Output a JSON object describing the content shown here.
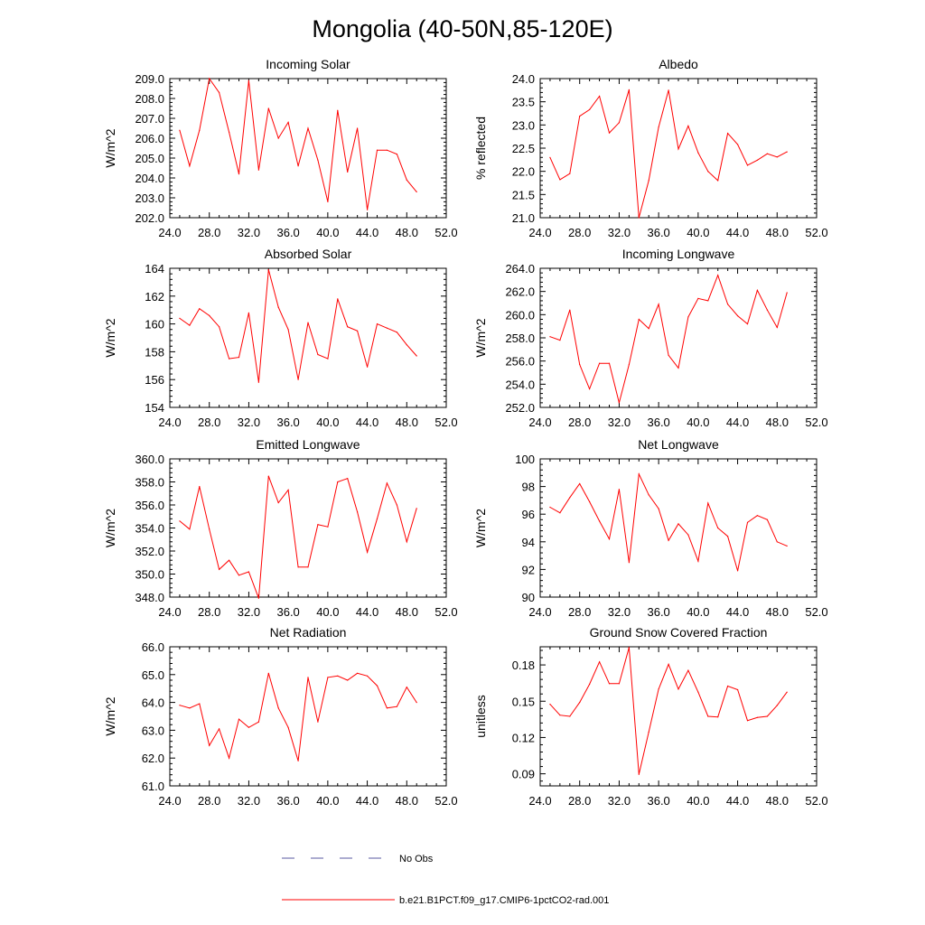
{
  "figure_title": "Mongolia (40-50N,85-120E)",
  "legend": {
    "entries": [
      {
        "label": "No Obs",
        "color": "#5a5aa0",
        "style": "dashed"
      },
      {
        "label": "b.e21.B1PCT.f09_g17.CMIP6-1pctCO2-rad.001",
        "color": "#ff0000",
        "style": "solid"
      }
    ]
  },
  "chart_data": [
    {
      "type": "line",
      "title": "Incoming Solar",
      "ylabel": "W/m^2",
      "xlim": [
        24,
        52
      ],
      "ylim": [
        202,
        209
      ],
      "xticks": [
        24,
        28,
        32,
        36,
        40,
        44,
        48,
        52
      ],
      "xtick_labels": [
        "24.0",
        "28.0",
        "32.0",
        "36.0",
        "40.0",
        "44.0",
        "48.0",
        "52.0"
      ],
      "yticks": [
        202,
        203,
        204,
        205,
        206,
        207,
        208,
        209
      ],
      "ytick_labels": [
        "202.0",
        "203.0",
        "204.0",
        "205.0",
        "206.0",
        "207.0",
        "208.0",
        "209.0"
      ],
      "color": "#ff0000",
      "x": [
        25,
        26,
        27,
        28,
        29,
        30,
        31,
        32,
        33,
        34,
        35,
        36,
        37,
        38,
        39,
        40,
        41,
        42,
        43,
        44,
        45,
        46,
        47,
        48,
        49
      ],
      "y": [
        206.4,
        204.6,
        206.4,
        209.0,
        208.3,
        206.3,
        204.2,
        208.9,
        204.4,
        207.5,
        206.0,
        206.8,
        204.6,
        206.5,
        204.9,
        202.8,
        207.4,
        204.3,
        206.5,
        202.4,
        205.4,
        205.4,
        205.2,
        203.9,
        203.3
      ]
    },
    {
      "type": "line",
      "title": "Albedo",
      "ylabel": "% reflected",
      "xlim": [
        24,
        52
      ],
      "ylim": [
        21,
        24
      ],
      "xticks": [
        24,
        28,
        32,
        36,
        40,
        44,
        48,
        52
      ],
      "xtick_labels": [
        "24.0",
        "28.0",
        "32.0",
        "36.0",
        "40.0",
        "44.0",
        "48.0",
        "52.0"
      ],
      "yticks": [
        21,
        21.5,
        22,
        22.5,
        23,
        23.5,
        24
      ],
      "ytick_labels": [
        "21.0",
        "21.5",
        "22.0",
        "22.5",
        "23.0",
        "23.5",
        "24.0"
      ],
      "color": "#ff0000",
      "x": [
        25,
        26,
        27,
        28,
        29,
        30,
        31,
        32,
        33,
        34,
        35,
        36,
        37,
        38,
        39,
        40,
        41,
        42,
        43,
        44,
        45,
        46,
        47,
        48,
        49
      ],
      "y": [
        22.3,
        21.82,
        21.95,
        23.19,
        23.33,
        23.62,
        22.83,
        23.05,
        23.76,
        21.0,
        21.8,
        22.95,
        23.75,
        22.48,
        22.98,
        22.4,
        22.0,
        21.8,
        22.82,
        22.58,
        22.13,
        22.24,
        22.38,
        22.31,
        22.42
      ]
    },
    {
      "type": "line",
      "title": "Absorbed Solar",
      "ylabel": "W/m^2",
      "xlim": [
        24,
        52
      ],
      "ylim": [
        154,
        164
      ],
      "xticks": [
        24,
        28,
        32,
        36,
        40,
        44,
        48,
        52
      ],
      "xtick_labels": [
        "24.0",
        "28.0",
        "32.0",
        "36.0",
        "40.0",
        "44.0",
        "48.0",
        "52.0"
      ],
      "yticks": [
        154,
        156,
        158,
        160,
        162,
        164
      ],
      "ytick_labels": [
        "154",
        "156",
        "158",
        "160",
        "162",
        "164"
      ],
      "color": "#ff0000",
      "x": [
        25,
        26,
        27,
        28,
        29,
        30,
        31,
        32,
        33,
        34,
        35,
        36,
        37,
        38,
        39,
        40,
        41,
        42,
        43,
        44,
        45,
        46,
        47,
        48,
        49
      ],
      "y": [
        160.4,
        159.9,
        161.1,
        160.6,
        159.8,
        157.5,
        157.6,
        160.8,
        155.8,
        163.9,
        161.2,
        159.6,
        156.0,
        160.1,
        157.8,
        157.5,
        161.8,
        159.8,
        159.5,
        156.9,
        160.0,
        159.7,
        159.4,
        158.5,
        157.7
      ]
    },
    {
      "type": "line",
      "title": "Incoming Longwave",
      "ylabel": "W/m^2",
      "xlim": [
        24,
        52
      ],
      "ylim": [
        252,
        264
      ],
      "xticks": [
        24,
        28,
        32,
        36,
        40,
        44,
        48,
        52
      ],
      "xtick_labels": [
        "24.0",
        "28.0",
        "32.0",
        "36.0",
        "40.0",
        "44.0",
        "48.0",
        "52.0"
      ],
      "yticks": [
        252,
        254,
        256,
        258,
        260,
        262,
        264
      ],
      "ytick_labels": [
        "252.0",
        "254.0",
        "256.0",
        "258.0",
        "260.0",
        "262.0",
        "264.0"
      ],
      "color": "#ff0000",
      "x": [
        25,
        26,
        27,
        28,
        29,
        30,
        31,
        32,
        33,
        34,
        35,
        36,
        37,
        38,
        39,
        40,
        41,
        42,
        43,
        44,
        45,
        46,
        47,
        48,
        49
      ],
      "y": [
        258.1,
        257.8,
        260.4,
        255.7,
        253.6,
        255.8,
        255.8,
        252.4,
        255.7,
        259.6,
        258.8,
        260.9,
        256.5,
        255.4,
        259.8,
        261.4,
        261.2,
        263.4,
        260.9,
        259.9,
        259.2,
        262.1,
        260.4,
        258.9,
        261.9
      ]
    },
    {
      "type": "line",
      "title": "Emitted Longwave",
      "ylabel": "W/m^2",
      "xlim": [
        24,
        52
      ],
      "ylim": [
        348,
        360
      ],
      "xticks": [
        24,
        28,
        32,
        36,
        40,
        44,
        48,
        52
      ],
      "xtick_labels": [
        "24.0",
        "28.0",
        "32.0",
        "36.0",
        "40.0",
        "44.0",
        "48.0",
        "52.0"
      ],
      "yticks": [
        348,
        350,
        352,
        354,
        356,
        358,
        360
      ],
      "ytick_labels": [
        "348.0",
        "350.0",
        "352.0",
        "354.0",
        "356.0",
        "358.0",
        "360.0"
      ],
      "color": "#ff0000",
      "x": [
        25,
        26,
        27,
        28,
        29,
        30,
        31,
        32,
        33,
        34,
        35,
        36,
        37,
        38,
        39,
        40,
        41,
        42,
        43,
        44,
        45,
        46,
        47,
        48,
        49
      ],
      "y": [
        354.6,
        353.9,
        357.6,
        353.9,
        350.4,
        351.2,
        349.9,
        350.2,
        347.9,
        358.5,
        356.2,
        357.3,
        350.6,
        350.6,
        354.3,
        354.1,
        358.0,
        358.3,
        355.4,
        351.9,
        354.8,
        357.9,
        356.0,
        352.8,
        355.7
      ]
    },
    {
      "type": "line",
      "title": "Net Longwave",
      "ylabel": "W/m^2",
      "xlim": [
        24,
        52
      ],
      "ylim": [
        90,
        100
      ],
      "xticks": [
        24,
        28,
        32,
        36,
        40,
        44,
        48,
        52
      ],
      "xtick_labels": [
        "24.0",
        "28.0",
        "32.0",
        "36.0",
        "40.0",
        "44.0",
        "48.0",
        "52.0"
      ],
      "yticks": [
        90,
        92,
        94,
        96,
        98,
        100
      ],
      "ytick_labels": [
        "90",
        "92",
        "94",
        "96",
        "98",
        "100"
      ],
      "color": "#ff0000",
      "x": [
        25,
        26,
        27,
        28,
        29,
        30,
        31,
        32,
        33,
        34,
        35,
        36,
        37,
        38,
        39,
        40,
        41,
        42,
        43,
        44,
        45,
        46,
        47,
        48,
        49
      ],
      "y": [
        96.5,
        96.1,
        97.2,
        98.2,
        96.9,
        95.5,
        94.2,
        97.8,
        92.5,
        98.9,
        97.4,
        96.4,
        94.1,
        95.3,
        94.5,
        92.6,
        96.8,
        95.0,
        94.4,
        91.9,
        95.4,
        95.9,
        95.6,
        94.0,
        93.7
      ]
    },
    {
      "type": "line",
      "title": "Net Radiation",
      "ylabel": "W/m^2",
      "xlim": [
        24,
        52
      ],
      "ylim": [
        61,
        66
      ],
      "xticks": [
        24,
        28,
        32,
        36,
        40,
        44,
        48,
        52
      ],
      "xtick_labels": [
        "24.0",
        "28.0",
        "32.0",
        "36.0",
        "40.0",
        "44.0",
        "48.0",
        "52.0"
      ],
      "yticks": [
        61,
        62,
        63,
        64,
        65,
        66
      ],
      "ytick_labels": [
        "61.0",
        "62.0",
        "63.0",
        "64.0",
        "65.0",
        "66.0"
      ],
      "color": "#ff0000",
      "x": [
        25,
        26,
        27,
        28,
        29,
        30,
        31,
        32,
        33,
        34,
        35,
        36,
        37,
        38,
        39,
        40,
        41,
        42,
        43,
        44,
        45,
        46,
        47,
        48,
        49
      ],
      "y": [
        63.9,
        63.8,
        63.95,
        62.45,
        63.05,
        62.0,
        63.4,
        63.1,
        63.3,
        65.05,
        63.8,
        63.1,
        61.9,
        64.9,
        63.3,
        64.9,
        64.95,
        64.8,
        65.05,
        64.95,
        64.6,
        63.8,
        63.85,
        64.55,
        64.0
      ]
    },
    {
      "type": "line",
      "title": "Ground Snow Covered Fraction",
      "ylabel": "unitless",
      "xlim": [
        24,
        52
      ],
      "ylim": [
        0.08,
        0.195
      ],
      "xticks": [
        24,
        28,
        32,
        36,
        40,
        44,
        48,
        52
      ],
      "xtick_labels": [
        "24.0",
        "28.0",
        "32.0",
        "36.0",
        "40.0",
        "44.0",
        "48.0",
        "52.0"
      ],
      "yticks": [
        0.09,
        0.12,
        0.15,
        0.18
      ],
      "ytick_labels": [
        "0.09",
        "0.12",
        "0.15",
        "0.18"
      ],
      "color": "#ff0000",
      "x": [
        25,
        26,
        27,
        28,
        29,
        30,
        31,
        32,
        33,
        34,
        35,
        36,
        37,
        38,
        39,
        40,
        41,
        42,
        43,
        44,
        45,
        46,
        47,
        48,
        49
      ],
      "y": [
        0.1475,
        0.1385,
        0.1375,
        0.149,
        0.164,
        0.1825,
        0.1645,
        0.1645,
        0.1945,
        0.0895,
        0.1245,
        0.16,
        0.1805,
        0.16,
        0.1755,
        0.1575,
        0.1375,
        0.137,
        0.1625,
        0.1595,
        0.134,
        0.1365,
        0.1375,
        0.1465,
        0.1575
      ]
    }
  ]
}
